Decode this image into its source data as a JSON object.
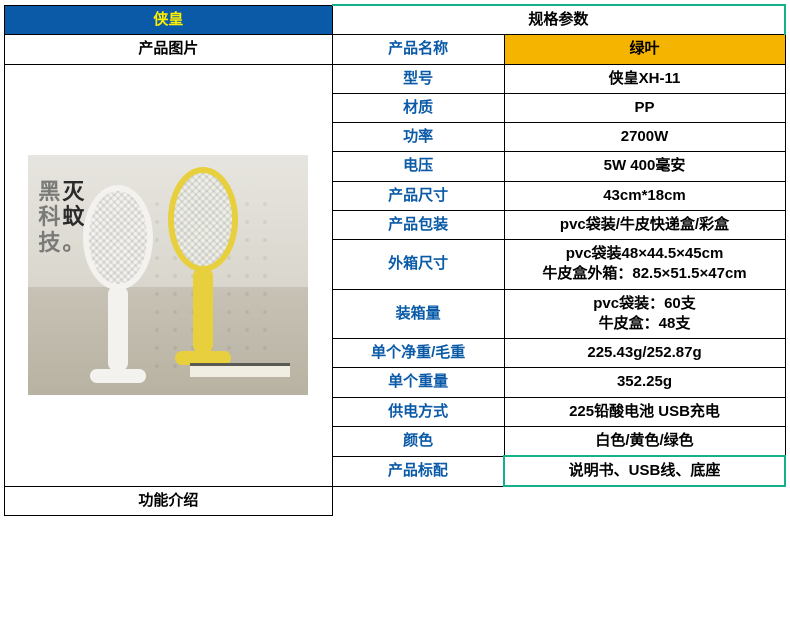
{
  "header": {
    "brand_cell": "侠皇",
    "spec_title": "规格参数",
    "image_label": "产品图片",
    "function_label": "功能介绍"
  },
  "image": {
    "slogan_line1a": "黑",
    "slogan_line1b": "灭",
    "slogan_line2a": "科",
    "slogan_line2b": "蚊",
    "slogan_line3a": "技",
    "slogan_line3b": "。"
  },
  "rows": [
    {
      "label": "产品名称",
      "value": "绿叶",
      "highlight": "yellow"
    },
    {
      "label": "型号",
      "value": "侠皇XH-11"
    },
    {
      "label": "材质",
      "value": "PP"
    },
    {
      "label": "功率",
      "value": "2700W"
    },
    {
      "label": "电压",
      "value": "5W 400毫安"
    },
    {
      "label": "产品尺寸",
      "value": "43cm*18cm"
    },
    {
      "label": "产品包装",
      "value": "pvc袋装/牛皮快递盒/彩盒"
    },
    {
      "label": "外箱尺寸",
      "value": "pvc袋装48×44.5×45cm\n牛皮盒外箱：82.5×51.5×47cm"
    },
    {
      "label": "装箱量",
      "value": "pvc袋装：60支\n牛皮盒：48支"
    },
    {
      "label": "单个净重/毛重",
      "value": "225.43g/252.87g"
    },
    {
      "label": "单个重量",
      "value": "352.25g"
    },
    {
      "label": "供电方式",
      "value": "225铅酸电池  USB充电"
    },
    {
      "label": "颜色",
      "value": "白色/黄色/绿色"
    },
    {
      "label": "产品标配",
      "value": "说明书、USB线、底座",
      "highlight": "green"
    }
  ],
  "style": {
    "brand_bg": "#0a5aa7",
    "brand_fg": "#ffee00",
    "label_color": "#0a5aa7",
    "yellow_bg": "#f5b400",
    "green_border": "#13b08a",
    "border_color": "#000000",
    "font_size_body": 15,
    "font_size_header": 17
  }
}
